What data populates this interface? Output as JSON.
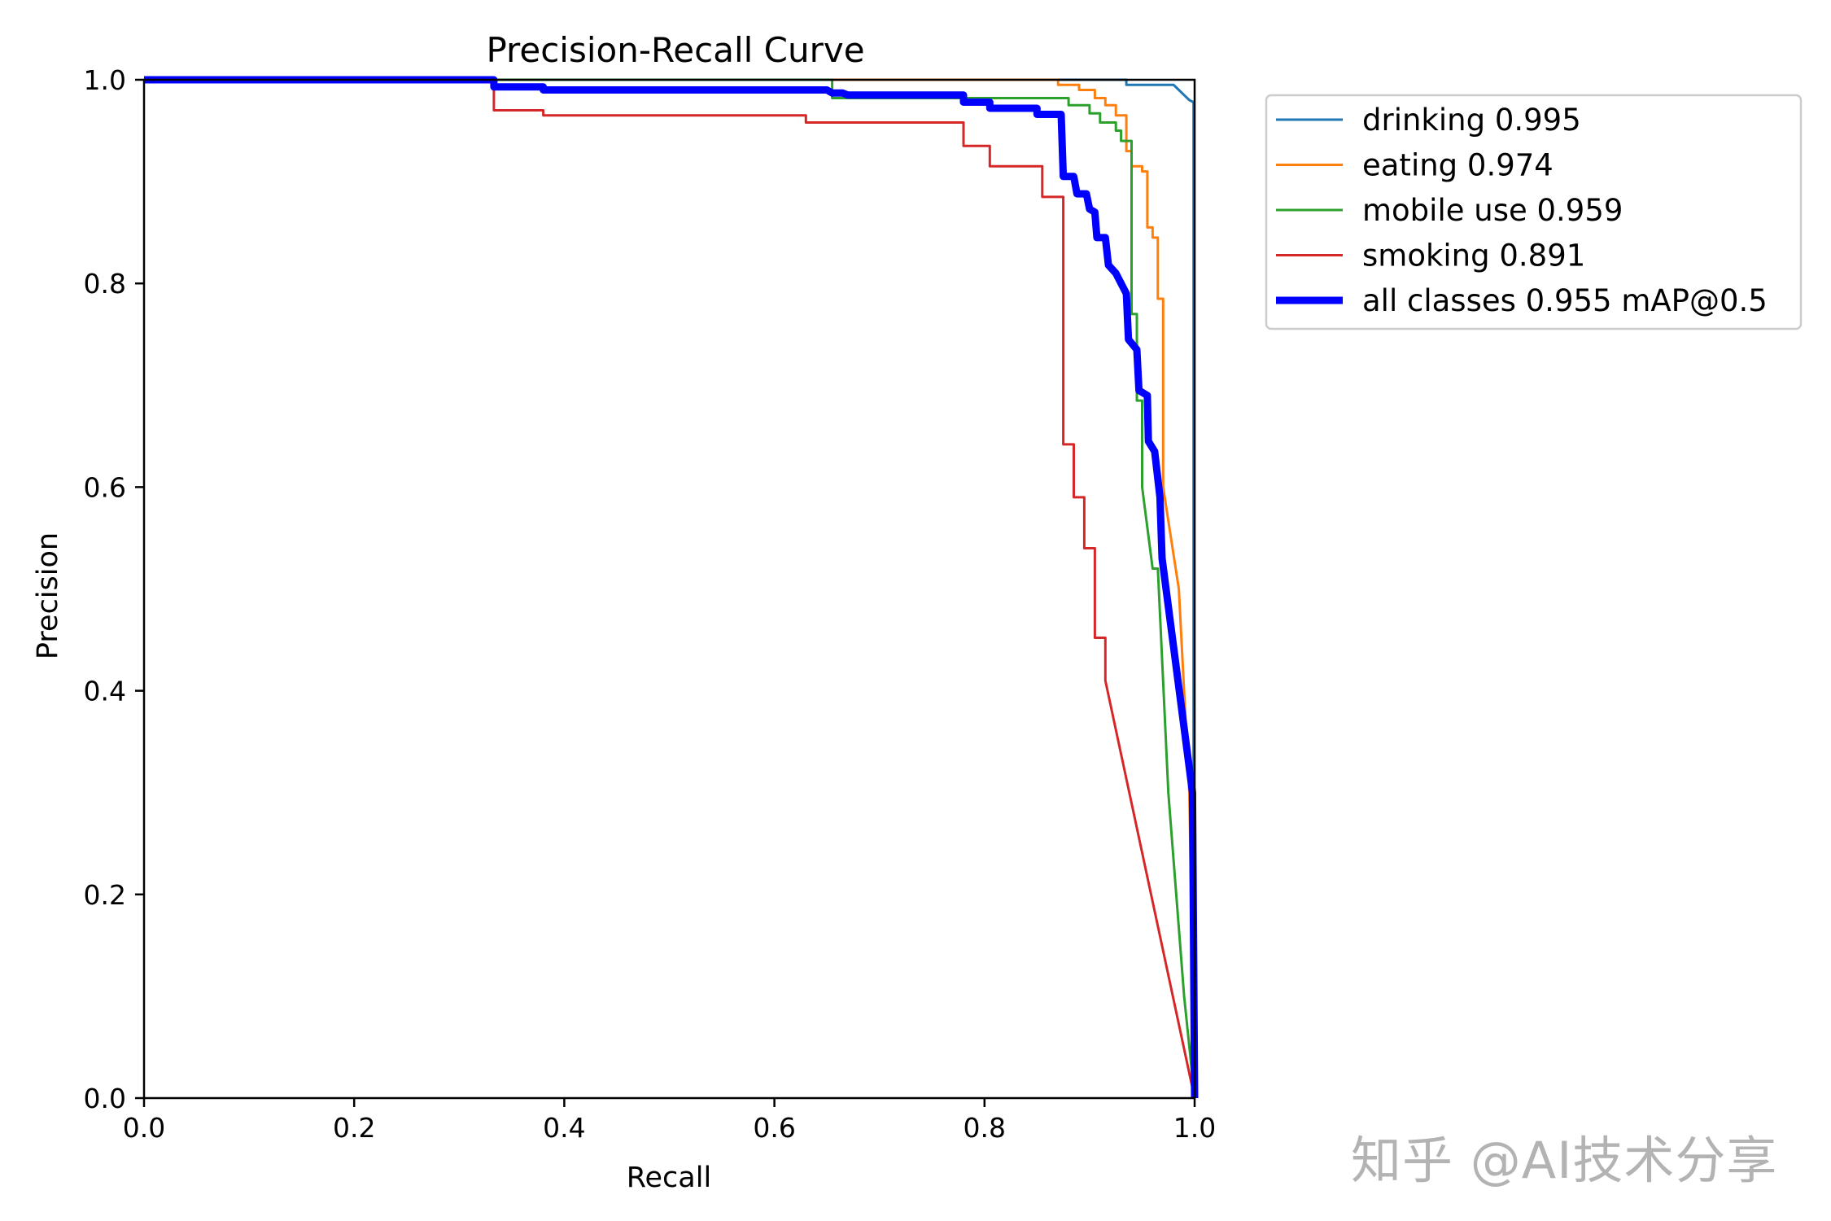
{
  "chart_data": {
    "type": "line",
    "title": "Precision-Recall Curve",
    "xlabel": "Recall",
    "ylabel": "Precision",
    "xlim": [
      0.0,
      1.0
    ],
    "ylim": [
      0.0,
      1.0
    ],
    "xticks": [
      "0.0",
      "0.2",
      "0.4",
      "0.6",
      "0.8",
      "1.0"
    ],
    "yticks": [
      "0.0",
      "0.2",
      "0.4",
      "0.6",
      "0.8",
      "1.0"
    ],
    "grid": false,
    "legend_position": "outside upper right",
    "series": [
      {
        "name": "drinking 0.995",
        "label": "drinking",
        "ap": 0.995,
        "color": "#1f77b4",
        "width": 3,
        "points": [
          [
            0,
            1.0
          ],
          [
            0.935,
            1.0
          ],
          [
            0.935,
            0.995
          ],
          [
            0.98,
            0.995
          ],
          [
            0.985,
            0.99
          ],
          [
            0.99,
            0.985
          ],
          [
            0.995,
            0.98
          ],
          [
            0.999,
            0.978
          ],
          [
            0.999,
            0.3
          ],
          [
            1.0,
            0.0
          ]
        ]
      },
      {
        "name": "eating 0.974",
        "label": "eating",
        "ap": 0.974,
        "color": "#ff7f0e",
        "width": 3,
        "points": [
          [
            0,
            1.0
          ],
          [
            0.87,
            1.0
          ],
          [
            0.87,
            0.995
          ],
          [
            0.89,
            0.995
          ],
          [
            0.89,
            0.99
          ],
          [
            0.905,
            0.99
          ],
          [
            0.905,
            0.982
          ],
          [
            0.915,
            0.982
          ],
          [
            0.915,
            0.975
          ],
          [
            0.925,
            0.975
          ],
          [
            0.925,
            0.965
          ],
          [
            0.935,
            0.965
          ],
          [
            0.935,
            0.93
          ],
          [
            0.94,
            0.93
          ],
          [
            0.94,
            0.915
          ],
          [
            0.95,
            0.915
          ],
          [
            0.95,
            0.91
          ],
          [
            0.955,
            0.91
          ],
          [
            0.955,
            0.855
          ],
          [
            0.96,
            0.855
          ],
          [
            0.96,
            0.845
          ],
          [
            0.965,
            0.845
          ],
          [
            0.965,
            0.785
          ],
          [
            0.97,
            0.785
          ],
          [
            0.97,
            0.6
          ],
          [
            0.985,
            0.5
          ],
          [
            0.995,
            0.3
          ],
          [
            1.0,
            0.0
          ]
        ]
      },
      {
        "name": "mobile use 0.959",
        "label": "mobile use",
        "ap": 0.959,
        "color": "#2ca02c",
        "width": 3,
        "points": [
          [
            0,
            1.0
          ],
          [
            0.655,
            1.0
          ],
          [
            0.655,
            0.982
          ],
          [
            0.88,
            0.982
          ],
          [
            0.88,
            0.975
          ],
          [
            0.9,
            0.975
          ],
          [
            0.9,
            0.967
          ],
          [
            0.91,
            0.967
          ],
          [
            0.91,
            0.958
          ],
          [
            0.925,
            0.958
          ],
          [
            0.925,
            0.95
          ],
          [
            0.93,
            0.95
          ],
          [
            0.93,
            0.94
          ],
          [
            0.94,
            0.94
          ],
          [
            0.94,
            0.77
          ],
          [
            0.945,
            0.77
          ],
          [
            0.945,
            0.685
          ],
          [
            0.95,
            0.685
          ],
          [
            0.95,
            0.6
          ],
          [
            0.96,
            0.52
          ],
          [
            0.965,
            0.52
          ],
          [
            0.975,
            0.3
          ],
          [
            0.99,
            0.1
          ],
          [
            1.0,
            0.0
          ]
        ]
      },
      {
        "name": "smoking 0.891",
        "label": "smoking",
        "ap": 0.891,
        "color": "#d62728",
        "width": 3,
        "points": [
          [
            0,
            1.0
          ],
          [
            0.333,
            1.0
          ],
          [
            0.333,
            0.97
          ],
          [
            0.38,
            0.97
          ],
          [
            0.38,
            0.965
          ],
          [
            0.63,
            0.965
          ],
          [
            0.63,
            0.958
          ],
          [
            0.78,
            0.958
          ],
          [
            0.78,
            0.935
          ],
          [
            0.805,
            0.935
          ],
          [
            0.805,
            0.915
          ],
          [
            0.855,
            0.915
          ],
          [
            0.855,
            0.885
          ],
          [
            0.875,
            0.885
          ],
          [
            0.875,
            0.642
          ],
          [
            0.885,
            0.642
          ],
          [
            0.885,
            0.59
          ],
          [
            0.895,
            0.59
          ],
          [
            0.895,
            0.54
          ],
          [
            0.905,
            0.54
          ],
          [
            0.905,
            0.452
          ],
          [
            0.915,
            0.452
          ],
          [
            0.915,
            0.41
          ],
          [
            1.0,
            0.0
          ]
        ]
      },
      {
        "name": "all classes 0.955 mAP@0.5",
        "label": "all classes",
        "ap": 0.955,
        "color": "#0000ff",
        "width": 9,
        "points": [
          [
            0,
            1.0
          ],
          [
            0.333,
            1.0
          ],
          [
            0.333,
            0.993
          ],
          [
            0.38,
            0.993
          ],
          [
            0.38,
            0.99
          ],
          [
            0.65,
            0.99
          ],
          [
            0.655,
            0.987
          ],
          [
            0.665,
            0.987
          ],
          [
            0.67,
            0.985
          ],
          [
            0.78,
            0.985
          ],
          [
            0.78,
            0.978
          ],
          [
            0.805,
            0.978
          ],
          [
            0.805,
            0.972
          ],
          [
            0.85,
            0.972
          ],
          [
            0.85,
            0.966
          ],
          [
            0.873,
            0.966
          ],
          [
            0.875,
            0.905
          ],
          [
            0.885,
            0.905
          ],
          [
            0.888,
            0.888
          ],
          [
            0.897,
            0.888
          ],
          [
            0.9,
            0.873
          ],
          [
            0.905,
            0.87
          ],
          [
            0.907,
            0.845
          ],
          [
            0.915,
            0.845
          ],
          [
            0.918,
            0.818
          ],
          [
            0.925,
            0.81
          ],
          [
            0.935,
            0.79
          ],
          [
            0.937,
            0.745
          ],
          [
            0.945,
            0.735
          ],
          [
            0.947,
            0.695
          ],
          [
            0.955,
            0.69
          ],
          [
            0.956,
            0.645
          ],
          [
            0.962,
            0.635
          ],
          [
            0.967,
            0.59
          ],
          [
            0.969,
            0.53
          ],
          [
            0.998,
            0.3
          ],
          [
            1.0,
            0.0
          ]
        ]
      }
    ]
  },
  "legend": {
    "items": [
      {
        "label": "drinking 0.995",
        "color": "#1f77b4"
      },
      {
        "label": "eating 0.974",
        "color": "#ff7f0e"
      },
      {
        "label": "mobile use 0.959",
        "color": "#2ca02c"
      },
      {
        "label": "smoking 0.891",
        "color": "#d62728"
      },
      {
        "label": "all classes 0.955 mAP@0.5",
        "color": "#0000ff"
      }
    ]
  },
  "watermark": "知乎 @AI技术分享"
}
